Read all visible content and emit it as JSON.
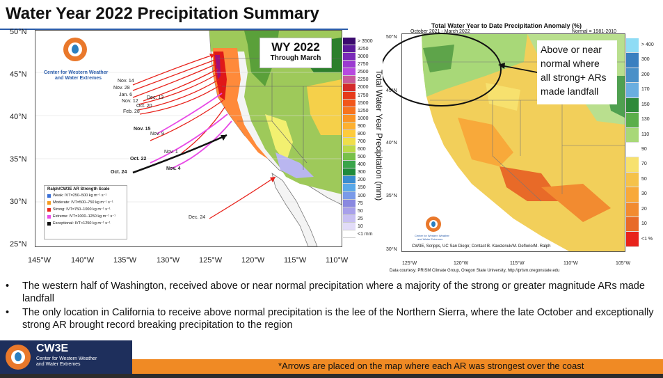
{
  "slide": {
    "title": "Water Year 2022 Precipitation Summary"
  },
  "left_map": {
    "badge_title": "WY 2022",
    "badge_subtitle": "Through March",
    "logo_line1": "Center for Western Weather",
    "logo_line2": "and Water Extremes",
    "colorbar_title": "Total Water Year Precipitation (mm)",
    "colorbar_labels": [
      "> 3500",
      "3250",
      "3000",
      "2750",
      "2500",
      "2250",
      "2000",
      "1750",
      "1500",
      "1250",
      "1000",
      "900",
      "800",
      "700",
      "600",
      "500",
      "400",
      "300",
      "200",
      "150",
      "100",
      "75",
      "50",
      "25",
      "10",
      "<1 mm"
    ],
    "lat_labels": [
      "50°N",
      "45°N",
      "40°N",
      "35°N",
      "30°N",
      "25°N"
    ],
    "lon_labels": [
      "145°W",
      "140°W",
      "135°W",
      "130°W",
      "125°W",
      "120°W",
      "115°W",
      "110°W"
    ],
    "legend_title": "Ralph/CW3E AR Strength Scale",
    "legend_items": [
      {
        "label": "Weak: IVT=250–500 kg m⁻¹ s⁻¹",
        "color": "#3a6fd6"
      },
      {
        "label": "Moderate: IVT=500–750 kg m⁻¹ s⁻¹",
        "color": "#f59b20"
      },
      {
        "label": "Strong: IVT=750–1000 kg m⁻¹ s⁻¹",
        "color": "#e8231c"
      },
      {
        "label": "Extreme: IVT=1000–1250 kg m⁻¹ s⁻¹",
        "color": "#e84be6"
      },
      {
        "label": "Exceptional: IVT>1250 kg m⁻¹ s⁻¹",
        "color": "#111111"
      }
    ],
    "ar_labels": [
      {
        "text": "Nov. 14",
        "bold": false
      },
      {
        "text": "Nov. 28",
        "bold": false
      },
      {
        "text": "Jan. 6",
        "bold": false
      },
      {
        "text": "Dec. 13",
        "bold": false
      },
      {
        "text": "Nov. 12",
        "bold": false
      },
      {
        "text": "Oct. 20",
        "bold": false
      },
      {
        "text": "Feb. 28",
        "bold": false
      },
      {
        "text": "Nov. 15",
        "bold": true
      },
      {
        "text": "Nov. 9",
        "bold": false
      },
      {
        "text": "Nov. 1",
        "bold": false
      },
      {
        "text": "Oct. 22",
        "bold": true
      },
      {
        "text": "Nov. 4",
        "bold": true
      },
      {
        "text": "Oct. 24",
        "bold": true
      },
      {
        "text": "Dec. 24",
        "bold": false
      }
    ]
  },
  "right_map": {
    "title": "Total Water Year to Date Precipitation Anomaly (%)",
    "period": "October 2021 - March 2022",
    "normal": "Normal = 1981-2010",
    "lat_labels": [
      "50°N",
      "45°N",
      "40°N",
      "35°N",
      "30°N"
    ],
    "lon_labels": [
      "125°W",
      "120°W",
      "115°W",
      "110°W",
      "105°W"
    ],
    "credit1": "CW3E, Scripps, UC San Diego; Contact B. Kawzenuk/M. Deflorio/M. Ralph",
    "credit2": "Data courtesy: PRISM Climate Group, Oregon State University, http://prism.oregonstate.edu",
    "logo_line1": "Center for Western Weather",
    "logo_line2": "and Water Extremes",
    "colorbar_labels": [
      "> 400",
      "300",
      "200",
      "170",
      "150",
      "130",
      "110",
      "90",
      "70",
      "50",
      "30",
      "20",
      "10",
      "<1 %"
    ],
    "callout": [
      "Above or near",
      "normal where",
      "all strong+ ARs",
      "made landfall"
    ]
  },
  "bullets": [
    "The western half of Washington, received above or near normal precipitation where a majority of the strong or greater magnitude ARs made landfall",
    "The only location in California to receive above normal precipitation is the lee of the Northern Sierra, where the late October and exceptionally strong AR brought record breaking precipitation to the region"
  ],
  "footer": {
    "brand": "CW3E",
    "sub1": "Center for Western Weather",
    "sub2": "and Water Extremes",
    "note": "*Arrows are placed on the map where each AR was strongest over the coast"
  },
  "colors": {
    "accent_blue": "#2a5caa",
    "footer_orange": "#f08a24",
    "footer_navy": "#1e2f5c",
    "logo_orange": "#e9782b",
    "logo_blue": "#2a7fc0"
  }
}
